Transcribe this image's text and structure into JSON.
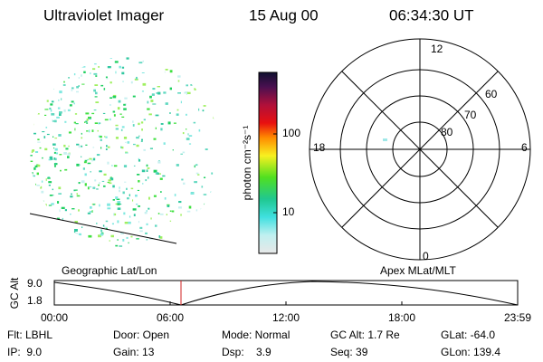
{
  "header": {
    "title": "Ultraviolet Imager",
    "date": "15 Aug 00",
    "time": "06:34:30 UT"
  },
  "colorbar": {
    "label": "photon cm⁻²s⁻¹",
    "ticks": [
      "100",
      "10"
    ]
  },
  "polar": {
    "mlt_labels": [
      "12",
      "18",
      "6",
      "0"
    ],
    "lat_labels": [
      "60",
      "70",
      "80"
    ]
  },
  "timeline": {
    "left_label": "Geographic Lat/Lon",
    "right_label": "Apex MLat/MLT",
    "y_label": "GC Alt",
    "yticks": [
      "9.0",
      "1.8"
    ],
    "xticks": [
      "00:00",
      "06:00",
      "12:00",
      "18:00",
      "23:59"
    ]
  },
  "info": {
    "rows": [
      [
        "Flt: LBHL",
        "Door: Open",
        "Mode: Normal",
        "GC Alt: 1.7 Re",
        "GLat: -64.0"
      ],
      [
        "IP:  9.0",
        "Gain: 13",
        "Dsp:    3.9",
        "Seq: 39",
        "GLon: 139.4"
      ]
    ]
  }
}
